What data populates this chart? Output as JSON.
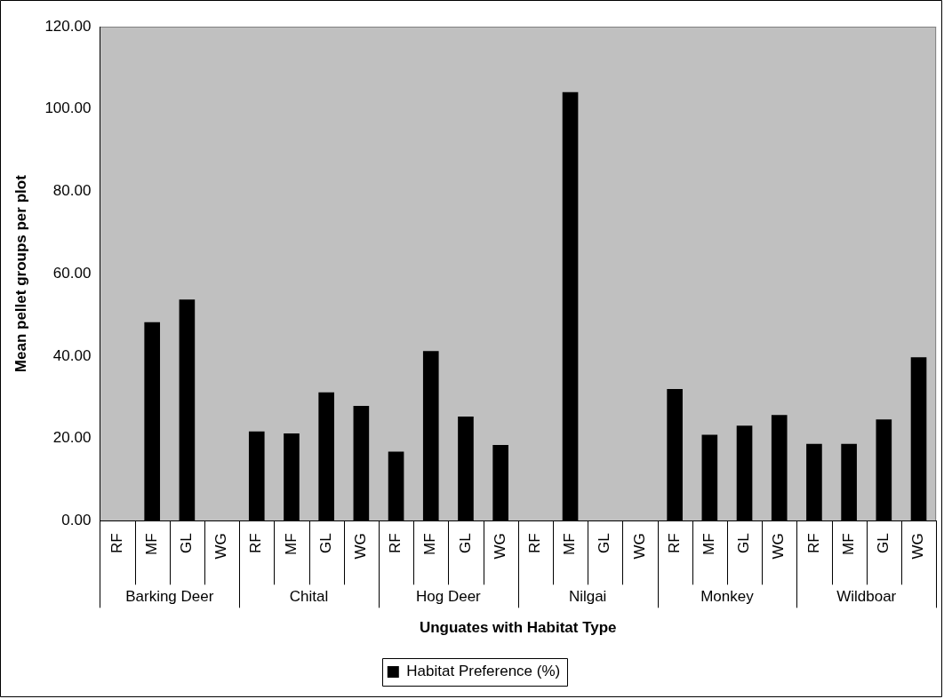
{
  "chart_data": {
    "type": "bar",
    "xlabel": "Unguates with Habitat Type",
    "ylabel": "Mean pellet groups per plot",
    "categories": [
      "RF",
      "MF",
      "GL",
      "WG",
      "RF",
      "MF",
      "GL",
      "WG",
      "RF",
      "MF",
      "GL",
      "WG",
      "RF",
      "MF",
      "GL",
      "WG",
      "RF",
      "MF",
      "GL",
      "WG",
      "RF",
      "MF",
      "GL",
      "WG"
    ],
    "annotations": [
      "Barking Deer",
      "Chital",
      "Hog Deer",
      "Nilgai",
      "Monkey",
      "Wildboar"
    ],
    "series": [
      {
        "name": "Habitat Preference (%)",
        "color": "#000000",
        "values": [
          0,
          48.2,
          53.7,
          0,
          21.7,
          21.2,
          31.2,
          27.9,
          16.8,
          41.2,
          25.3,
          18.4,
          0,
          104.1,
          0,
          0,
          32.0,
          20.9,
          23.1,
          25.7,
          18.7,
          18.7,
          24.6,
          39.7
        ]
      }
    ],
    "ylim": [
      0,
      120
    ],
    "yticks": [
      {
        "value": 0,
        "label": "0.00"
      },
      {
        "value": 20,
        "label": "20.00"
      },
      {
        "value": 40,
        "label": "40.00"
      },
      {
        "value": 60,
        "label": "60.00"
      },
      {
        "value": 80,
        "label": "80.00"
      },
      {
        "value": 100,
        "label": "100.00"
      },
      {
        "value": 120,
        "label": "120.00"
      }
    ],
    "legend": "bottom"
  }
}
